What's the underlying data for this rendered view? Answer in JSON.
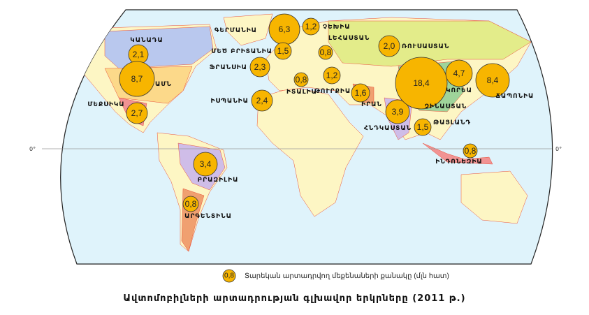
{
  "title": "Ավտոմոբիլների արտադրության գլխավոր երկրները (2011 թ.)",
  "legend": {
    "sample_value": "0,8",
    "text": "Տարեկան արտադրվող մեքենաների քանակը (մլն հատ)"
  },
  "equator_label": "0°",
  "colors": {
    "sea": "#dff3fb",
    "land": "#fdf6c4",
    "circle": "#f7b500",
    "border": "#e8503a"
  },
  "countries": [
    {
      "name": "ԳԵՐՄԱՆԻԱ",
      "value": "6,3"
    },
    {
      "name": "ՉԵԽԻԱ",
      "value": "1,2"
    },
    {
      "name": "ՄԵԾ ԲՐԻՏԱՆԻԱ",
      "value": "1,5"
    },
    {
      "name": "ԼԵՀԱՍՏԱՆ",
      "value": "0,8"
    },
    {
      "name": "ՌՈՒՍԱՍՏԱՆ",
      "value": "2,0"
    },
    {
      "name": "ԿԱՆԱԴԱ",
      "value": "2,1"
    },
    {
      "name": "ԱՄՆ",
      "value": "8,7"
    },
    {
      "name": "ՖՐԱՆՍԻԱ",
      "value": "2,3"
    },
    {
      "name": "ՄԵՔՍԻԿԱ",
      "value": "2,7"
    },
    {
      "name": "ԻՍՊԱՆԻԱ",
      "value": "2,4"
    },
    {
      "name": "ԻՏԱԼԻԱ",
      "value": "0,8"
    },
    {
      "name": "ԹՈՒՐՔԻԱ",
      "value": "1,2"
    },
    {
      "name": "ԻՐԱՆ",
      "value": "1,6"
    },
    {
      "name": "ՀՆԴԿԱՍՏԱՆ",
      "value": "3,9"
    },
    {
      "name": "ՉԻՆԱՍՏԱՆ",
      "value": "18,4"
    },
    {
      "name": "ԿՈՐԵԱ",
      "value": "4,7"
    },
    {
      "name": "ՃԱՊՈՆԻԱ",
      "value": "8,4"
    },
    {
      "name": "ԹԱՅԼԱՆԴ",
      "value": "1,5"
    },
    {
      "name": "ԻՆԴՈՆԵԶԻԱ",
      "value": "0,8"
    },
    {
      "name": "ԲՐԱԶԻԼԻԱ",
      "value": "3,4"
    },
    {
      "name": "ԱՐԳԵՆՏԻՆԱ",
      "value": "0,8"
    }
  ]
}
